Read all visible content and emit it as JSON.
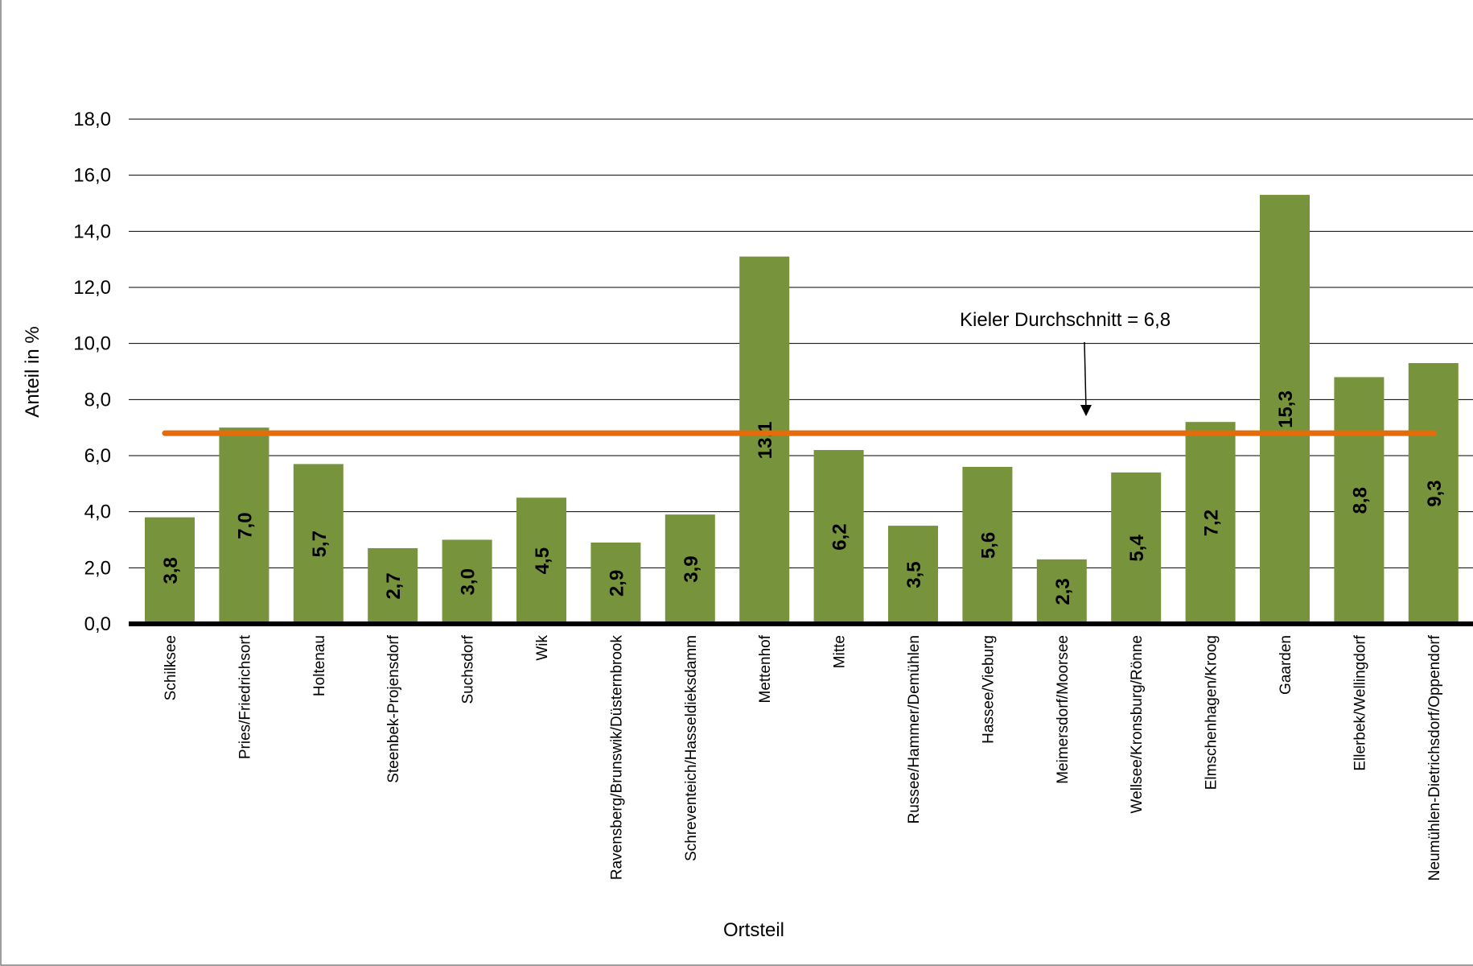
{
  "colors": {
    "bar": "#77933c",
    "average_line": "#e46c0a",
    "gridline": "#000000",
    "axis": "#000000",
    "frame": "#7f7f7f"
  },
  "chart_data": {
    "type": "bar",
    "title": "",
    "xlabel": "Ortsteil",
    "ylabel": "Anteil in %",
    "ylim": [
      0,
      18
    ],
    "yticks": [
      0,
      2,
      4,
      6,
      8,
      10,
      12,
      14,
      16,
      18
    ],
    "ytick_labels": [
      "0,0",
      "2,0",
      "4,0",
      "6,0",
      "8,0",
      "10,0",
      "12,0",
      "14,0",
      "16,0",
      "18,0"
    ],
    "grid": true,
    "categories": [
      "Schilksee",
      "Pries/Friedrichsort",
      "Holtenau",
      "Steenbek-Projensdorf",
      "Suchsdorf",
      "Wik",
      "Ravensberg/Brunswik/Düsternbrook",
      "Schreventeich/Hasseldieksdamm",
      "Mettenhof",
      "Mitte",
      "Russee/Hammer/Demühlen",
      "Hassee/Vieburg",
      "Meimersdorf/Moorsee",
      "Wellsee/Kronsburg/Rönne",
      "Elmschenhagen/Kroog",
      "Gaarden",
      "Ellerbek/Wellingdorf",
      "Neumühlen-Dietrichsdorf/Oppendorf"
    ],
    "values": [
      3.8,
      7.0,
      5.7,
      2.7,
      3.0,
      4.5,
      2.9,
      3.9,
      13.1,
      6.2,
      3.5,
      5.6,
      2.3,
      5.4,
      7.2,
      15.3,
      8.8,
      9.3
    ],
    "value_labels": [
      "3,8",
      "7,0",
      "5,7",
      "2,7",
      "3,0",
      "4,5",
      "2,9",
      "3,9",
      "13,1",
      "6,2",
      "3,5",
      "5,6",
      "2,3",
      "5,4",
      "7,2",
      "15,3",
      "8,8",
      "9,3"
    ],
    "reference_line": {
      "value": 6.8,
      "label": "Kieler Durchschnitt = 6,8"
    }
  }
}
